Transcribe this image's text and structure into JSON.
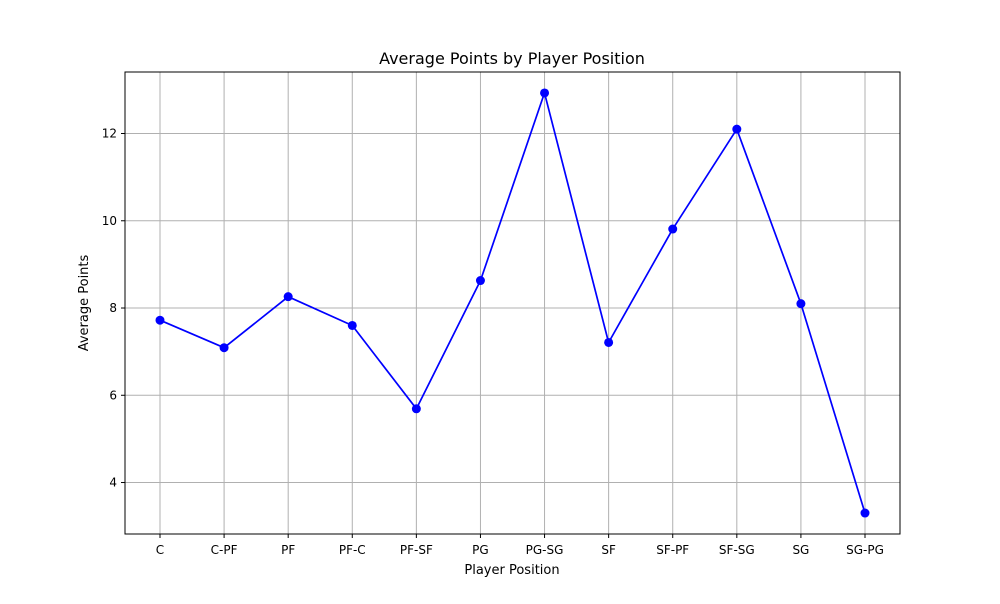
{
  "chart_data": {
    "type": "line",
    "title": "Average Points by Player Position",
    "xlabel": "Player Position",
    "ylabel": "Average Points",
    "categories": [
      "C",
      "C-PF",
      "PF",
      "PF-C",
      "PF-SF",
      "PG",
      "PG-SG",
      "SF",
      "SF-PF",
      "SF-SG",
      "SG",
      "SG-PG"
    ],
    "series": [
      {
        "values": [
          7.72,
          7.09,
          8.26,
          7.6,
          5.69,
          8.63,
          12.93,
          7.21,
          9.81,
          12.1,
          8.1,
          3.3
        ],
        "color": "#0000ff",
        "marker": "circle"
      }
    ],
    "ylim": [
      2.82,
      13.41
    ],
    "yticks": [
      4,
      6,
      8,
      10,
      12
    ],
    "grid": true,
    "grid_color": "#b0b0b0",
    "frame_color": "#000000"
  }
}
